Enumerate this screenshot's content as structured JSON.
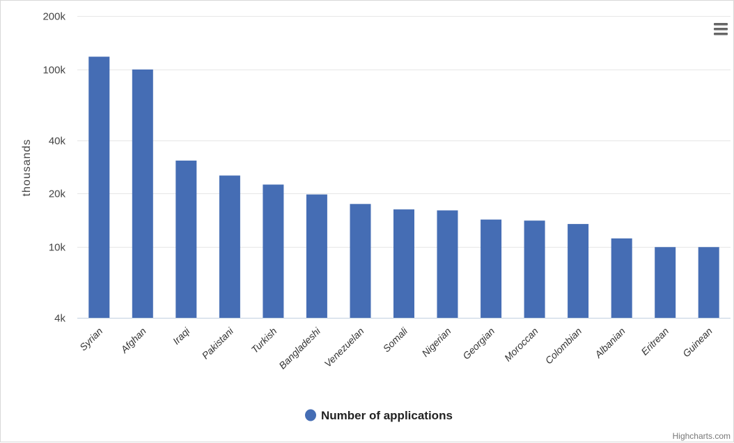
{
  "chart_data": {
    "type": "bar",
    "scale": "log",
    "categories": [
      "Syrian",
      "Afghan",
      "Iraqi",
      "Pakistani",
      "Turkish",
      "Bangladeshi",
      "Venezuelan",
      "Somali",
      "Nigerian",
      "Georgian",
      "Moroccan",
      "Colombian",
      "Albanian",
      "Eritrean",
      "Guinean"
    ],
    "series": [
      {
        "name": "Number of applications",
        "values": [
          118000,
          100000,
          30700,
          25300,
          22500,
          19800,
          17500,
          16300,
          16100,
          14300,
          14100,
          13500,
          11200,
          10000,
          10000
        ]
      }
    ],
    "ylabel": "thousands",
    "ylim": [
      4000,
      200000
    ],
    "yticks": [
      4000,
      10000,
      20000,
      40000,
      100000,
      200000
    ],
    "ytick_labels": [
      "4k",
      "10k",
      "20k",
      "40k",
      "100k",
      "200k"
    ],
    "grid": true,
    "legend_position": "bottom",
    "bar_color": "#456db4",
    "grid_color": "#e6e6e6"
  },
  "credits": "Highcharts.com",
  "menu_icon": "hamburger-menu-icon"
}
